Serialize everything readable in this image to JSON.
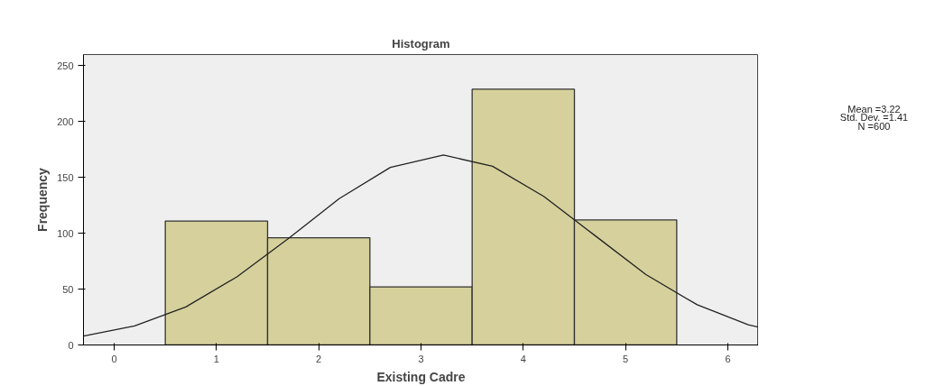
{
  "chart_data": {
    "type": "histogram",
    "title": "Histogram",
    "xlabel": "Existing Cadre",
    "ylabel": "Frequency",
    "bins": [
      0.5,
      1.5,
      2.5,
      3.5,
      4.5,
      5.5
    ],
    "values": [
      111,
      96,
      52,
      229,
      112
    ],
    "color": "#d6d19c",
    "series": [
      {
        "type": "line",
        "color": "#222222",
        "x": [
          -0.3,
          0.2,
          0.7,
          1.2,
          1.7,
          2.2,
          2.7,
          3.22,
          3.7,
          4.2,
          4.7,
          5.2,
          5.7,
          6.2,
          6.3
        ],
        "values": [
          8,
          17,
          34,
          61,
          95,
          131,
          159,
          170,
          160,
          133,
          98,
          63,
          36,
          18,
          16
        ]
      }
    ],
    "xlim": [
      -0.3,
      6.3
    ],
    "ylim": [
      0,
      260
    ],
    "xticks": [
      0,
      1,
      2,
      3,
      4,
      5,
      6
    ],
    "yticks": [
      0,
      50,
      100,
      150,
      200,
      250
    ],
    "grid": false,
    "annotations": [
      "Mean =3.22",
      "Std. Dev. =1.41",
      "N =600"
    ]
  }
}
